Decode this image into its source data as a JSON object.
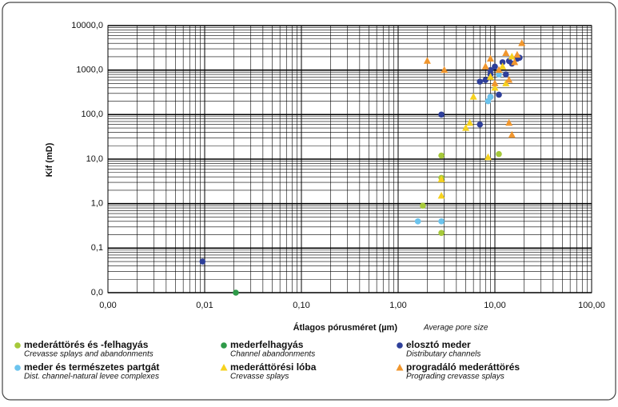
{
  "chart_data": {
    "type": "scatter",
    "xlabel": "Átlagos pórusméret (µm)",
    "xlabel_note": "Average pore size",
    "ylabel": "Kif (mD)",
    "xscale": "log",
    "yscale": "log",
    "grid": true,
    "xlim": [
      0.001,
      100
    ],
    "ylim": [
      0.01,
      10000
    ],
    "xticks": [
      {
        "value": 0.001,
        "label": "0,00"
      },
      {
        "value": 0.01,
        "label": "0,01"
      },
      {
        "value": 0.1,
        "label": "0,10"
      },
      {
        "value": 1,
        "label": "1,00"
      },
      {
        "value": 10,
        "label": "10,00"
      },
      {
        "value": 100,
        "label": "100,00"
      }
    ],
    "yticks": [
      {
        "value": 0.01,
        "label": "0,0"
      },
      {
        "value": 0.1,
        "label": "0,1"
      },
      {
        "value": 1,
        "label": "1,0"
      },
      {
        "value": 10,
        "label": "10,0"
      },
      {
        "value": 100,
        "label": "100,0"
      },
      {
        "value": 1000,
        "label": "1000,0"
      },
      {
        "value": 10000,
        "label": "10000,0"
      }
    ],
    "series": [
      {
        "name": "mederáttörés és -felhagyás",
        "note": "Crevasse splays and abandonments",
        "color": "#a6c93a",
        "marker": "circle",
        "x": [
          1.8,
          2.8,
          2.8,
          2.8,
          11
        ],
        "values": [
          0.9,
          12,
          3.8,
          0.22,
          13
        ]
      },
      {
        "name": "mederfelhagyás",
        "note": "Channel abandonments",
        "color": "#2e9a48",
        "marker": "circle",
        "x": [
          0.021
        ],
        "values": [
          0.01
        ]
      },
      {
        "name": "elosztó meder",
        "note": "Distributary channels",
        "color": "#2e3f9a",
        "marker": "circle",
        "x": [
          0.0095,
          2.8,
          7,
          8,
          9,
          9,
          10,
          11,
          12,
          13,
          14,
          15,
          17,
          18,
          7,
          9
        ],
        "values": [
          0.05,
          100,
          550,
          600,
          250,
          1000,
          1200,
          280,
          1500,
          800,
          1600,
          1400,
          1800,
          1900,
          60,
          800
        ]
      },
      {
        "name": "meder és természetes partgát",
        "note": "Dist. channel-natural levee complexes",
        "color": "#6cc4ee",
        "marker": "circle",
        "x": [
          1.6,
          2.8,
          8.5,
          9,
          11
        ],
        "values": [
          0.4,
          0.4,
          200,
          250,
          800
        ]
      },
      {
        "name": "mederáttörési lóba",
        "note": "Crevasse splays",
        "color": "#f6d21e",
        "marker": "triangle",
        "x": [
          2.8,
          2.8,
          5,
          5.5,
          6,
          8.5,
          9,
          10,
          12,
          13,
          15
        ],
        "values": [
          1.5,
          3.5,
          50,
          65,
          250,
          11,
          700,
          400,
          1200,
          500,
          2000
        ]
      },
      {
        "name": "progradáló mederáttörés",
        "note": "Prograding crevasse splays",
        "color": "#f0962e",
        "marker": "triangle",
        "x": [
          2,
          3,
          8,
          9,
          10,
          11,
          13,
          14,
          15,
          14,
          17,
          19,
          16
        ],
        "values": [
          1600,
          1000,
          1200,
          1800,
          500,
          1000,
          2400,
          600,
          35,
          65,
          2200,
          4000,
          1500
        ]
      }
    ]
  }
}
